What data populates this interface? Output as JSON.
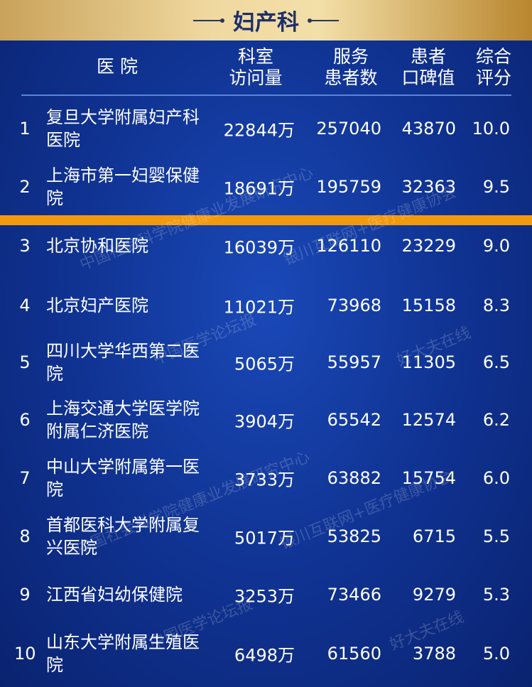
{
  "title": "妇产科",
  "headers": {
    "hospital": "医 院",
    "visits": [
      "科室",
      "访问量"
    ],
    "patients": [
      "服务",
      "患者数"
    ],
    "reputation": [
      "患者",
      "口碑值"
    ],
    "score": [
      "综合",
      "评分"
    ]
  },
  "rows": [
    {
      "rank": "1",
      "name": "复旦大学附属妇产科医院",
      "visits": "22844万",
      "patients": "257040",
      "reputation": "43870",
      "score": "10.0"
    },
    {
      "rank": "2",
      "name": "上海市第一妇婴保健院",
      "visits": "18691万",
      "patients": "195759",
      "reputation": "32363",
      "score": "9.5"
    },
    {
      "rank": "3",
      "name": "北京协和医院",
      "visits": "16039万",
      "patients": "126110",
      "reputation": "23229",
      "score": "9.0"
    },
    {
      "rank": "4",
      "name": "北京妇产医院",
      "visits": "11021万",
      "patients": "73968",
      "reputation": "15158",
      "score": "8.3"
    },
    {
      "rank": "5",
      "name": "四川大学华西第二医院",
      "visits": "5065万",
      "patients": "55957",
      "reputation": "11305",
      "score": "6.5"
    },
    {
      "rank": "6",
      "name": "上海交通大学医学院附属仁济医院",
      "visits": "3904万",
      "patients": "65542",
      "reputation": "12574",
      "score": "6.2"
    },
    {
      "rank": "7",
      "name": "中山大学附属第一医院",
      "visits": "3733万",
      "patients": "63882",
      "reputation": "15754",
      "score": "6.0"
    },
    {
      "rank": "8",
      "name": "首都医科大学附属复兴医院",
      "visits": "5017万",
      "patients": "53825",
      "reputation": "6715",
      "score": "5.5"
    },
    {
      "rank": "9",
      "name": "江西省妇幼保健院",
      "visits": "3253万",
      "patients": "73466",
      "reputation": "9279",
      "score": "5.3"
    },
    {
      "rank": "10",
      "name": "山东大学附属生殖医院",
      "visits": "6498万",
      "patients": "61560",
      "reputation": "3788",
      "score": "5.0"
    }
  ],
  "watermarks": [
    "中国社会科学院健康业发展研究中心",
    "银川互联网+医疗健康协会",
    "中国医学论坛报",
    "好大夫在线",
    "中国社会科学院健康业发展研究中心",
    "银川互联网+医疗健康协会",
    "中国医学论坛报",
    "好大夫在线"
  ],
  "colors": {
    "gold": "#e8c985",
    "blue": "#0f318f",
    "divider": "#f29a0e"
  }
}
